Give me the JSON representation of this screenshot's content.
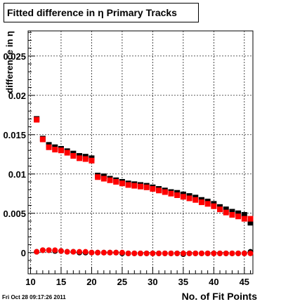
{
  "title": "Fitted difference in  η Primary Tracks",
  "timestamp": "Fri Oct 28 09:17:26 2011",
  "chart_data": {
    "type": "scatter",
    "title": "Fitted difference in  η Primary Tracks",
    "xlabel": "No. of Fit Points",
    "ylabel": "difference in η",
    "xlim": [
      9.6,
      46.4
    ],
    "ylim": [
      -0.0027,
      0.0282
    ],
    "x_ticks": [
      10,
      15,
      20,
      25,
      30,
      35,
      40,
      45
    ],
    "x_tick_labels": [
      "10",
      "15",
      "20",
      "25",
      "30",
      "35",
      "40",
      "45"
    ],
    "y_ticks": [
      0,
      0.005,
      0.01,
      0.015,
      0.02,
      0.025
    ],
    "y_tick_labels": [
      "0",
      "0.005",
      "0.01",
      "0.015",
      "0.02",
      "0.025"
    ],
    "grid": true,
    "x": [
      11,
      12,
      13,
      14,
      15,
      16,
      17,
      18,
      19,
      20,
      21,
      22,
      23,
      24,
      25,
      26,
      27,
      28,
      29,
      30,
      31,
      32,
      33,
      34,
      35,
      36,
      37,
      38,
      39,
      40,
      41,
      42,
      43,
      44,
      45,
      46
    ],
    "series": [
      {
        "marker": "square",
        "color": "#000000",
        "values": [
          0.017,
          0.0145,
          0.0137,
          0.0134,
          0.0132,
          0.0129,
          0.0126,
          0.0123,
          0.0122,
          0.012,
          0.0098,
          0.0097,
          0.0094,
          0.0092,
          0.009,
          0.0088,
          0.0087,
          0.0086,
          0.0085,
          0.0083,
          0.0081,
          0.0079,
          0.0077,
          0.0076,
          0.0074,
          0.0072,
          0.007,
          0.0067,
          0.0065,
          0.0062,
          0.0058,
          0.0055,
          0.0052,
          0.005,
          0.0048,
          0.0038
        ]
      },
      {
        "marker": "square",
        "color": "#ff0000",
        "values": [
          0.0169,
          0.0144,
          0.0134,
          0.0131,
          0.013,
          0.0127,
          0.0123,
          0.012,
          0.0119,
          0.0117,
          0.0096,
          0.0094,
          0.0092,
          0.009,
          0.0088,
          0.0086,
          0.0085,
          0.0084,
          0.0083,
          0.0081,
          0.0079,
          0.0077,
          0.0075,
          0.0073,
          0.0071,
          0.0069,
          0.0067,
          0.0064,
          0.0062,
          0.0059,
          0.0055,
          0.0051,
          0.0048,
          0.0046,
          0.0043,
          0.0043
        ]
      },
      {
        "marker": "circle",
        "color": "#000000",
        "values": [
          0.0001,
          0.0003,
          0.0003,
          0.0002,
          0.0002,
          0.0001,
          0.0001,
          0.0,
          0.0,
          0.0,
          0.0,
          0.0,
          0.0,
          0.0,
          -0.0001,
          -0.0001,
          -0.0001,
          -0.0001,
          -0.0001,
          -0.0001,
          -0.0001,
          -0.0001,
          -0.0001,
          -0.0001,
          -0.0002,
          -0.0001,
          -0.0001,
          -0.0001,
          -0.0001,
          -0.0001,
          -0.0001,
          -0.0001,
          -0.0001,
          -0.0001,
          -0.0001,
          0.0001
        ]
      },
      {
        "marker": "circle",
        "color": "#ff0000",
        "values": [
          0.0001,
          0.0003,
          0.0003,
          0.0003,
          0.0002,
          0.0001,
          0.0001,
          0.0001,
          0.0001,
          0.0,
          0.0,
          0.0,
          0.0,
          0.0,
          0.0,
          -0.0001,
          -0.0001,
          -0.0001,
          -0.0001,
          -0.0001,
          -0.0001,
          -0.0001,
          -0.0001,
          -0.0001,
          -0.0001,
          -0.0001,
          -0.0001,
          -0.0001,
          -0.0001,
          -0.0001,
          -0.0001,
          -0.0001,
          -0.0001,
          -0.0001,
          -0.0001,
          -0.0001
        ]
      }
    ]
  }
}
